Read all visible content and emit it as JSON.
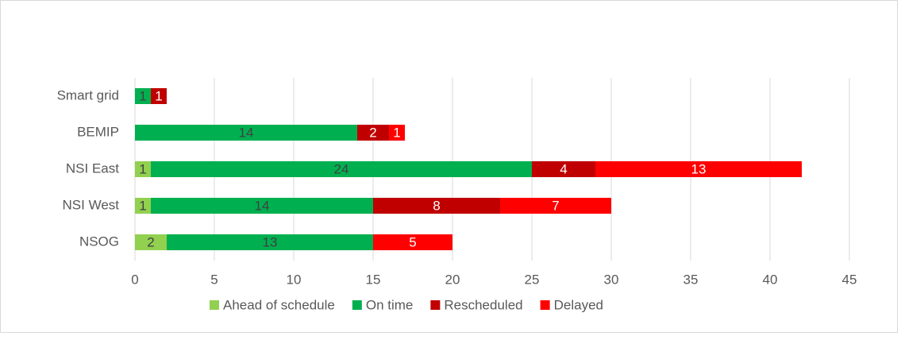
{
  "chart_data": {
    "type": "bar",
    "orientation": "horizontal",
    "stacked": true,
    "categories": [
      "Smart grid",
      "BEMIP",
      "NSI East",
      "NSI West",
      "NSOG"
    ],
    "series": [
      {
        "name": "Ahead of schedule",
        "color": "#92d050",
        "label_color": "#404040",
        "values": [
          null,
          null,
          1,
          1,
          2
        ]
      },
      {
        "name": "On time",
        "color": "#00b050",
        "label_color": "#404040",
        "values": [
          1,
          14,
          24,
          14,
          13
        ]
      },
      {
        "name": "Rescheduled",
        "color": "#c00000",
        "label_color": "#ffffff",
        "values": [
          1,
          2,
          4,
          8,
          null
        ]
      },
      {
        "name": "Delayed",
        "color": "#ff0000",
        "label_color": "#ffffff",
        "values": [
          null,
          1,
          13,
          7,
          5
        ]
      }
    ],
    "xlim": [
      0,
      45
    ],
    "xticks": [
      0,
      5,
      10,
      15,
      20,
      25,
      30,
      35,
      40,
      45
    ],
    "grid": true,
    "legend": "bottom"
  }
}
